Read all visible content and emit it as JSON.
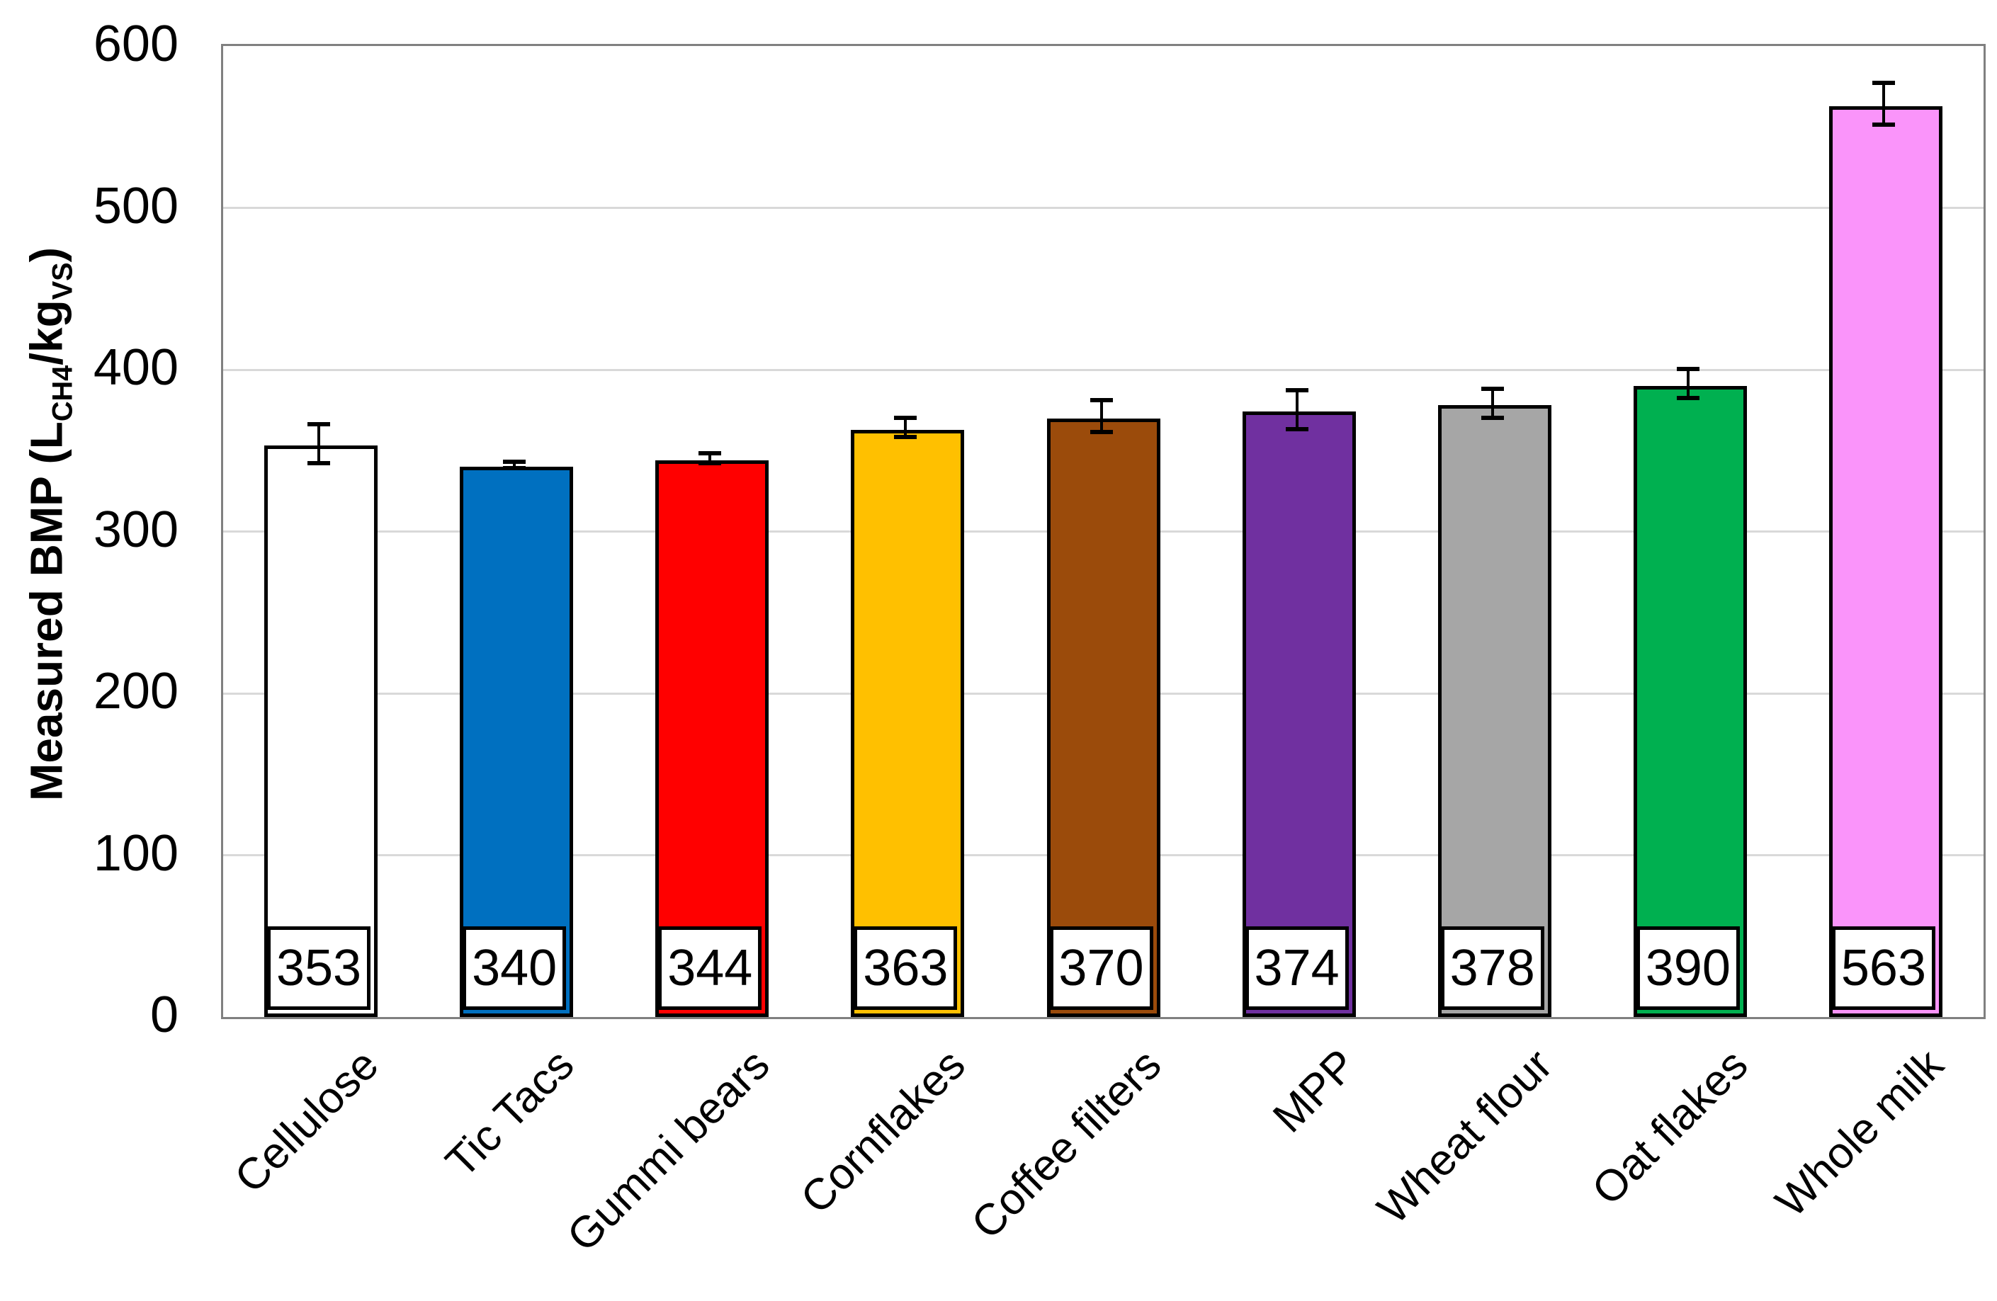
{
  "chart_data": {
    "type": "bar",
    "title": "",
    "ylabel_plain": "Measured BMP (LCH4/kgVS)",
    "ylabel_parts": [
      {
        "text": "Measured BMP (L",
        "sub": false
      },
      {
        "text": "CH4",
        "sub": true
      },
      {
        "text": "/kg",
        "sub": false
      },
      {
        "text": "VS",
        "sub": true
      },
      {
        "text": ")",
        "sub": false
      }
    ],
    "categories": [
      "Cellulose",
      "Tic Tacs",
      "Gummi bears",
      "Cornflakes",
      "Coffee filters",
      "MPP",
      "Wheat flour",
      "Oat flakes",
      "Whole milk"
    ],
    "values": [
      353,
      340,
      344,
      363,
      370,
      374,
      378,
      390,
      563
    ],
    "value_labels": [
      "353",
      "340",
      "344",
      "363",
      "370",
      "374",
      "378",
      "390",
      "563"
    ],
    "errors": [
      12,
      2,
      3,
      6,
      10,
      12,
      9,
      9,
      13
    ],
    "bar_colors": [
      "#FFFFFF",
      "#0070C0",
      "#FF0000",
      "#FFC000",
      "#9B4B0B",
      "#7030A0",
      "#A6A6A6",
      "#00B050",
      "#FA94FA"
    ],
    "bar_border_color": "#000000",
    "error_bar_color": "#000000",
    "yticks": [
      0,
      100,
      200,
      300,
      400,
      500,
      600
    ],
    "ylim": [
      0,
      600
    ],
    "grid": true,
    "gridline_color": "#D9D9D9",
    "plot_border_color": "#808080",
    "value_box_border_color": "#000000",
    "value_box_fill": "#FFFFFF",
    "legend_position": "none"
  }
}
